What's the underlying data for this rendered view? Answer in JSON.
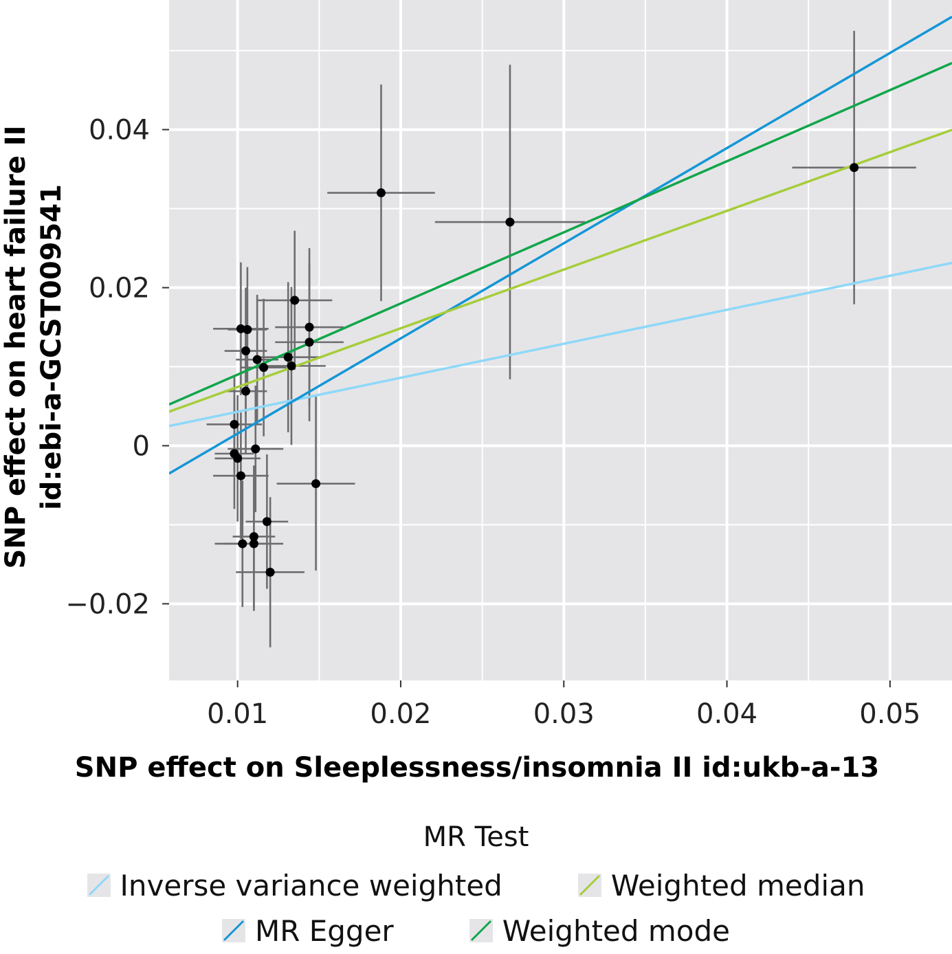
{
  "chart_data": {
    "type": "scatter",
    "title": "",
    "xlabel": "SNP effect on Sleeplessness/insomnia II id:ukb-a-13",
    "ylabel_lines": [
      "SNP effect on heart failure II",
      "id:ebi-a-GCST009541"
    ],
    "xlim": [
      0.0058,
      0.0538
    ],
    "ylim": [
      -0.0297,
      0.0564
    ],
    "x_ticks": [
      0.01,
      0.02,
      0.03,
      0.04,
      0.05
    ],
    "x_tick_labels": [
      "0.01",
      "0.02",
      "0.03",
      "0.04",
      "0.05"
    ],
    "y_ticks": [
      -0.02,
      0,
      0.02,
      0.04
    ],
    "y_tick_labels": [
      "−0.02",
      "0",
      "0.02",
      "0.04"
    ],
    "grid": true,
    "points": [
      {
        "x": 0.0102,
        "y": 0.0148,
        "xerr": 0.0017,
        "yerr": 0.0084
      },
      {
        "x": 0.0106,
        "y": 0.0147,
        "xerr": 0.0012,
        "yerr": 0.0079
      },
      {
        "x": 0.0105,
        "y": 0.012,
        "xerr": 0.0013,
        "yerr": 0.008
      },
      {
        "x": 0.0112,
        "y": 0.0109,
        "xerr": 0.0013,
        "yerr": 0.0082
      },
      {
        "x": 0.0116,
        "y": 0.0099,
        "xerr": 0.0014,
        "yerr": 0.0087
      },
      {
        "x": 0.0135,
        "y": 0.0184,
        "xerr": 0.0023,
        "yerr": 0.0088
      },
      {
        "x": 0.0144,
        "y": 0.015,
        "xerr": 0.0021,
        "yerr": 0.01
      },
      {
        "x": 0.0144,
        "y": 0.0131,
        "xerr": 0.0021,
        "yerr": 0.01
      },
      {
        "x": 0.0131,
        "y": 0.0112,
        "xerr": 0.002,
        "yerr": 0.0095
      },
      {
        "x": 0.0133,
        "y": 0.0101,
        "xerr": 0.0021,
        "yerr": 0.01
      },
      {
        "x": 0.0105,
        "y": 0.0069,
        "xerr": 0.0013,
        "yerr": 0.008
      },
      {
        "x": 0.0098,
        "y": 0.0027,
        "xerr": 0.0017,
        "yerr": 0.006
      },
      {
        "x": 0.0111,
        "y": -0.0004,
        "xerr": 0.0017,
        "yerr": 0.008
      },
      {
        "x": 0.0098,
        "y": -0.001,
        "xerr": 0.0012,
        "yerr": 0.007
      },
      {
        "x": 0.01,
        "y": -0.0016,
        "xerr": 0.0014,
        "yerr": 0.008
      },
      {
        "x": 0.0102,
        "y": -0.0038,
        "xerr": 0.0017,
        "yerr": 0.008
      },
      {
        "x": 0.0148,
        "y": -0.0048,
        "xerr": 0.0024,
        "yerr": 0.011
      },
      {
        "x": 0.0118,
        "y": -0.0096,
        "xerr": 0.0013,
        "yerr": 0.0085
      },
      {
        "x": 0.011,
        "y": -0.0115,
        "xerr": 0.0013,
        "yerr": 0.009
      },
      {
        "x": 0.0103,
        "y": -0.0124,
        "xerr": 0.0017,
        "yerr": 0.008
      },
      {
        "x": 0.011,
        "y": -0.0124,
        "xerr": 0.0018,
        "yerr": 0.0085
      },
      {
        "x": 0.012,
        "y": -0.016,
        "xerr": 0.0021,
        "yerr": 0.0095
      },
      {
        "x": 0.0188,
        "y": 0.032,
        "xerr": 0.0033,
        "yerr": 0.0137
      },
      {
        "x": 0.0267,
        "y": 0.0283,
        "xerr": 0.0046,
        "yerr": 0.0199
      },
      {
        "x": 0.0478,
        "y": 0.0352,
        "xerr": 0.0038,
        "yerr": 0.0173
      }
    ],
    "series": [
      {
        "name": "Inverse variance weighted",
        "color": "#8ed8f8",
        "slope": 0.43,
        "intercept": 0.0
      },
      {
        "name": "MR Egger",
        "color": "#1596d6",
        "slope": 1.204,
        "intercept": -0.0105
      },
      {
        "name": "Weighted median",
        "color": "#a6cd3a",
        "slope": 0.743,
        "intercept": 0.0
      },
      {
        "name": "Weighted mode",
        "color": "#11a64a",
        "slope": 0.9,
        "intercept": 0.0
      }
    ],
    "legend": {
      "title": "MR Test",
      "placement": "bottom",
      "rows": [
        [
          "Inverse variance weighted",
          "Weighted median"
        ],
        [
          "MR Egger",
          "Weighted mode"
        ]
      ]
    },
    "colors": {
      "panel_background": "#e5e5e8",
      "grid": "#ffffff",
      "point": "#000000",
      "errorbar": "#6d6d6f"
    }
  }
}
